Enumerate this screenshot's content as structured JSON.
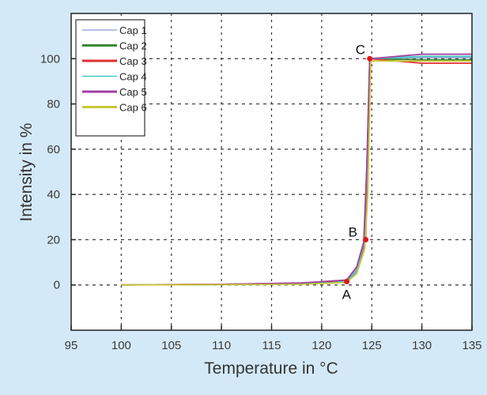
{
  "chart_data": {
    "type": "line",
    "title": "",
    "xlabel": "Temperature in °C",
    "ylabel": "Intensity in %",
    "xlim": [
      95,
      135
    ],
    "ylim": [
      -20,
      120
    ],
    "xticks": [
      95,
      100,
      105,
      110,
      115,
      120,
      125,
      130,
      135
    ],
    "yticks": [
      0,
      20,
      40,
      60,
      80,
      100
    ],
    "grid": true,
    "legend_position": "upper-left",
    "series": [
      {
        "name": "Cap 1",
        "color": "#9fa8d8",
        "x": [
          100,
          110,
          118,
          121,
          122.5,
          123.5,
          124.2,
          124.5,
          124.8,
          130,
          135
        ],
        "y": [
          0,
          0.2,
          0.6,
          1.2,
          2,
          7,
          18,
          45,
          100,
          100.5,
          100.5
        ]
      },
      {
        "name": "Cap 2",
        "color": "#3a8a3a",
        "x": [
          100,
          110,
          118,
          121,
          122.5,
          123.5,
          124.2,
          124.5,
          124.8,
          130,
          135
        ],
        "y": [
          0,
          0.2,
          0.5,
          1,
          1.8,
          6,
          17,
          50,
          100,
          99.5,
          99.5
        ]
      },
      {
        "name": "Cap 3",
        "color": "#e03030",
        "x": [
          100,
          110,
          118,
          121,
          122.5,
          123.5,
          124.4,
          124.6,
          124.8,
          130,
          135
        ],
        "y": [
          0,
          0.3,
          0.8,
          1.5,
          1.5,
          6,
          20,
          60,
          100,
          98,
          98
        ]
      },
      {
        "name": "Cap 4",
        "color": "#48c8c8",
        "x": [
          100,
          110,
          118,
          121,
          122.5,
          123.5,
          124.2,
          124.5,
          124.8,
          130,
          135
        ],
        "y": [
          0,
          0.2,
          0.5,
          1,
          1.6,
          6,
          18,
          48,
          100,
          101,
          101
        ]
      },
      {
        "name": "Cap 5",
        "color": "#a040a0",
        "x": [
          100,
          110,
          118,
          121,
          122.5,
          123.5,
          124.2,
          124.5,
          124.8,
          130,
          135
        ],
        "y": [
          0,
          0.3,
          0.9,
          1.8,
          2.2,
          8,
          19,
          52,
          100,
          102,
          102
        ]
      },
      {
        "name": "Cap 6",
        "color": "#c8c838",
        "x": [
          100,
          110,
          118,
          121,
          122.5,
          123.5,
          124.3,
          124.6,
          124.9,
          130,
          135
        ],
        "y": [
          0,
          0.1,
          0.3,
          0.8,
          1.2,
          5,
          16,
          40,
          99,
          99,
          99
        ]
      }
    ],
    "annotations": [
      {
        "label": "A",
        "x": 122.5,
        "y": 1.5
      },
      {
        "label": "B",
        "x": 124.4,
        "y": 20
      },
      {
        "label": "C",
        "x": 124.8,
        "y": 100
      }
    ]
  },
  "labels": {
    "xlabel": "Temperature in °C",
    "ylabel": "Intensity in %"
  }
}
